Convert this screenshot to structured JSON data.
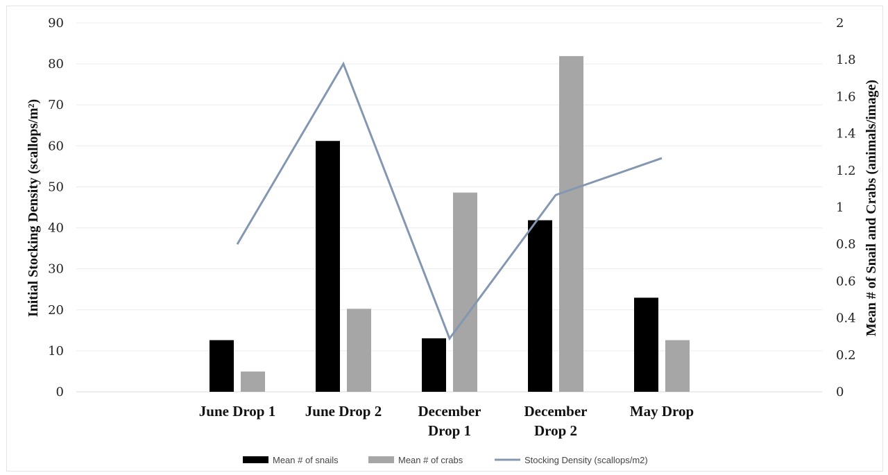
{
  "chart_data": {
    "type": "bar",
    "categories": [
      [
        "June Drop 1"
      ],
      [
        "June Drop 2"
      ],
      [
        "December",
        "Drop 1"
      ],
      [
        "December",
        "Drop 2"
      ],
      [
        "May Drop"
      ]
    ],
    "ylabel_left": "Initial Stocking Density (scallops/m²)",
    "ylabel_right": "Mean # of Snail  and Crabs (animals/image)",
    "ylim_left": [
      0,
      90
    ],
    "ylim_right": [
      0,
      2
    ],
    "yticks_left": [
      "0",
      "10",
      "20",
      "30",
      "40",
      "50",
      "60",
      "70",
      "80",
      "90"
    ],
    "yticks_right": [
      "0",
      "0.2",
      "0.4",
      "0.6",
      "0.8",
      "1",
      "1.2",
      "1.4",
      "1.6",
      "1.8",
      "2"
    ],
    "grid": true,
    "legend_position": "bottom",
    "series": [
      {
        "name": "Mean # of snails",
        "kind": "bar",
        "axis": "right",
        "color": "#000000",
        "values": [
          0.28,
          1.36,
          0.29,
          0.93,
          0.51
        ]
      },
      {
        "name": "Mean # of crabs",
        "kind": "bar",
        "axis": "right",
        "color": "#a6a6a6",
        "values": [
          0.11,
          0.45,
          1.08,
          1.82,
          0.28
        ]
      },
      {
        "name": "Stocking Density (scallops/m2)",
        "kind": "line",
        "axis": "left",
        "color": "#8497b0",
        "values": [
          36,
          80,
          13,
          48,
          57
        ]
      }
    ]
  }
}
